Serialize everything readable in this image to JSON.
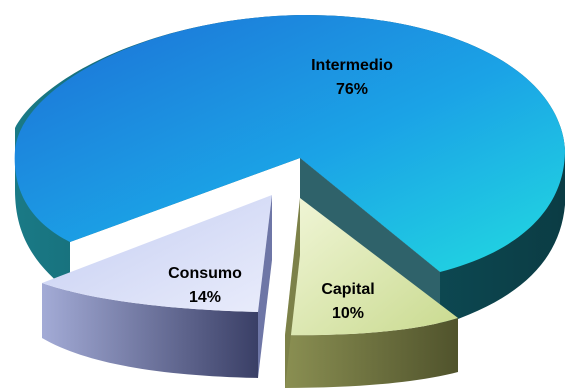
{
  "chart_data": {
    "type": "pie",
    "title": "",
    "style": "3d-exploded",
    "slices": [
      {
        "name": "Intermedio",
        "label": "Intermedio",
        "percent_label": "76%",
        "value": 76,
        "color_top": "#1fb3e6",
        "color_side": "#0e4f5a"
      },
      {
        "name": "Capital",
        "label": "Capital",
        "percent_label": "10%",
        "value": 10,
        "color_top": "#dde9b5",
        "color_side": "#676b3c"
      },
      {
        "name": "Consumo",
        "label": "Consumo",
        "percent_label": "14%",
        "value": 14,
        "color_top": "#d0d6f4",
        "color_side": "#4a5078"
      }
    ]
  }
}
